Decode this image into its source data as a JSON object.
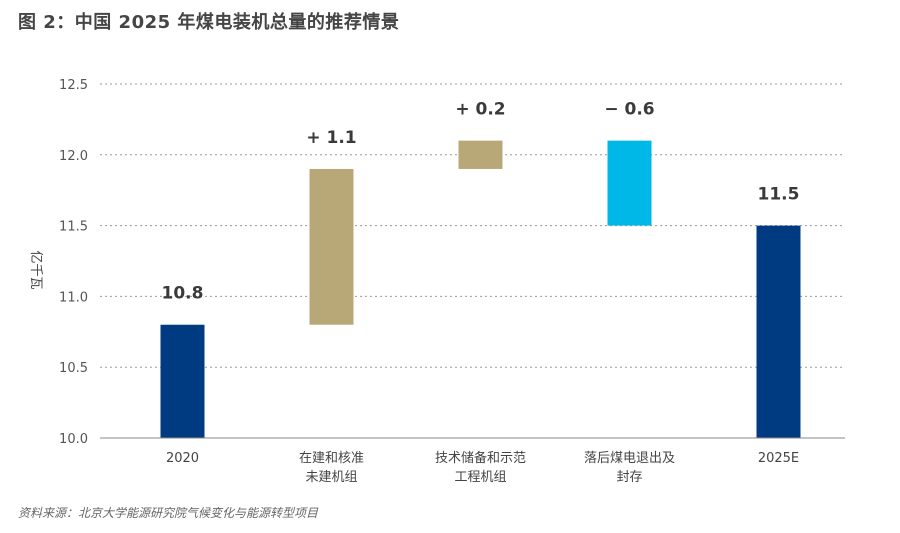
{
  "page": {
    "title": "图 2：中国 2025 年煤电装机总量的推荐情景",
    "source": "资料来源：北京大学能源研究院气候变化与能源转型项目"
  },
  "chart_data": {
    "type": "bar",
    "subtype": "waterfall",
    "title": "图 2：中国 2025 年煤电装机总量的推荐情景",
    "ylabel": "亿千瓦",
    "ylim": [
      10.0,
      12.5
    ],
    "yticks": [
      "10.0",
      "10.5",
      "11.0",
      "11.5",
      "12.0",
      "12.5"
    ],
    "grid": true,
    "categories": [
      [
        "2020"
      ],
      [
        "在建和核准",
        "未建机组"
      ],
      [
        "技术储备和示范",
        "工程机组"
      ],
      [
        "落后煤电退出及",
        "封存"
      ],
      [
        "2025E"
      ]
    ],
    "bars": [
      {
        "kind": "total",
        "start": 10.0,
        "end": 10.8,
        "label": "10.8",
        "color": "#003a80"
      },
      {
        "kind": "increase",
        "start": 10.8,
        "end": 11.9,
        "label": "+ 1.1",
        "color": "#b8a878"
      },
      {
        "kind": "increase",
        "start": 11.9,
        "end": 12.1,
        "label": "+ 0.2",
        "color": "#b8a878"
      },
      {
        "kind": "decrease",
        "start": 12.1,
        "end": 11.5,
        "label": "− 0.6",
        "color": "#00b8e8"
      },
      {
        "kind": "total",
        "start": 10.0,
        "end": 11.5,
        "label": "11.5",
        "color": "#003a80"
      }
    ]
  }
}
